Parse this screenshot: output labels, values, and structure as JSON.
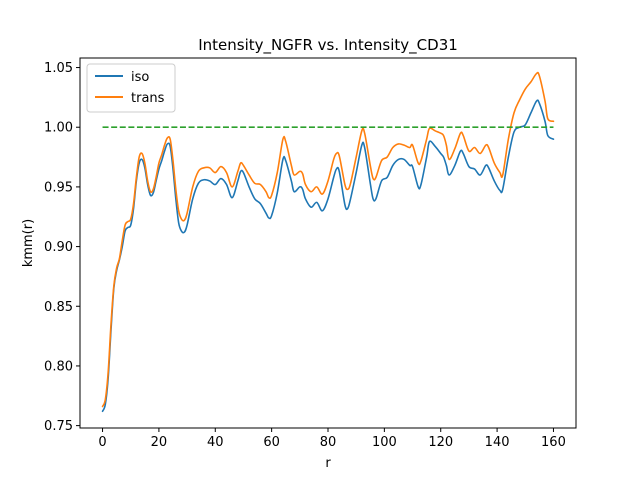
{
  "chart_data": {
    "type": "line",
    "title": "Intensity_NGFR vs. Intensity_CD31",
    "xlabel": "r",
    "ylabel": "kmm(r)",
    "xlim": [
      -8,
      168
    ],
    "ylim": [
      0.748,
      1.058
    ],
    "xticks": [
      0,
      20,
      40,
      60,
      80,
      100,
      120,
      140,
      160
    ],
    "xtick_labels": [
      "0",
      "20",
      "40",
      "60",
      "80",
      "100",
      "120",
      "140",
      "160"
    ],
    "yticks": [
      0.75,
      0.8,
      0.85,
      0.9,
      0.95,
      1.0,
      1.05
    ],
    "ytick_labels": [
      "0.75",
      "0.80",
      "0.85",
      "0.90",
      "0.95",
      "1.00",
      "1.05"
    ],
    "grid": false,
    "legend": {
      "position": "top-left",
      "entries": [
        "iso",
        "trans"
      ]
    },
    "series": [
      {
        "name": "iso",
        "color": "#1f77b4",
        "style": "solid",
        "points": [
          [
            0,
            0.762
          ],
          [
            1,
            0.768
          ],
          [
            2,
            0.79
          ],
          [
            3,
            0.83
          ],
          [
            4,
            0.865
          ],
          [
            5,
            0.88
          ],
          [
            6,
            0.889
          ],
          [
            7,
            0.9
          ],
          [
            8,
            0.913
          ],
          [
            9,
            0.916
          ],
          [
            10,
            0.918
          ],
          [
            11,
            0.932
          ],
          [
            12,
            0.955
          ],
          [
            13,
            0.97
          ],
          [
            14,
            0.973
          ],
          [
            15,
            0.966
          ],
          [
            16,
            0.952
          ],
          [
            17,
            0.943
          ],
          [
            18,
            0.945
          ],
          [
            19,
            0.955
          ],
          [
            20,
            0.965
          ],
          [
            21,
            0.972
          ],
          [
            22,
            0.98
          ],
          [
            23,
            0.986
          ],
          [
            24,
            0.984
          ],
          [
            25,
            0.965
          ],
          [
            26,
            0.94
          ],
          [
            27,
            0.92
          ],
          [
            28,
            0.913
          ],
          [
            29,
            0.912
          ],
          [
            30,
            0.918
          ],
          [
            32,
            0.94
          ],
          [
            34,
            0.953
          ],
          [
            36,
            0.956
          ],
          [
            38,
            0.955
          ],
          [
            40,
            0.952
          ],
          [
            42,
            0.957
          ],
          [
            44,
            0.952
          ],
          [
            46,
            0.941
          ],
          [
            48,
            0.955
          ],
          [
            49,
            0.963
          ],
          [
            50,
            0.962
          ],
          [
            52,
            0.95
          ],
          [
            54,
            0.94
          ],
          [
            56,
            0.936
          ],
          [
            58,
            0.928
          ],
          [
            59,
            0.924
          ],
          [
            60,
            0.926
          ],
          [
            62,
            0.945
          ],
          [
            64,
            0.973
          ],
          [
            65,
            0.972
          ],
          [
            67,
            0.955
          ],
          [
            68,
            0.946
          ],
          [
            70,
            0.95
          ],
          [
            71,
            0.948
          ],
          [
            72,
            0.94
          ],
          [
            74,
            0.933
          ],
          [
            76,
            0.937
          ],
          [
            78,
            0.93
          ],
          [
            80,
            0.94
          ],
          [
            82,
            0.958
          ],
          [
            83,
            0.965
          ],
          [
            84,
            0.963
          ],
          [
            86,
            0.935
          ],
          [
            87,
            0.932
          ],
          [
            88,
            0.94
          ],
          [
            90,
            0.962
          ],
          [
            92,
            0.985
          ],
          [
            93,
            0.983
          ],
          [
            95,
            0.953
          ],
          [
            96,
            0.94
          ],
          [
            97,
            0.94
          ],
          [
            99,
            0.955
          ],
          [
            101,
            0.958
          ],
          [
            103,
            0.968
          ],
          [
            105,
            0.973
          ],
          [
            107,
            0.973
          ],
          [
            109,
            0.968
          ],
          [
            110,
            0.967
          ],
          [
            112,
            0.95
          ],
          [
            113,
            0.952
          ],
          [
            115,
            0.975
          ],
          [
            116,
            0.988
          ],
          [
            118,
            0.984
          ],
          [
            120,
            0.978
          ],
          [
            121,
            0.975
          ],
          [
            122,
            0.968
          ],
          [
            123,
            0.96
          ],
          [
            125,
            0.968
          ],
          [
            127,
            0.98
          ],
          [
            128,
            0.978
          ],
          [
            130,
            0.967
          ],
          [
            132,
            0.965
          ],
          [
            134,
            0.96
          ],
          [
            136,
            0.968
          ],
          [
            137,
            0.966
          ],
          [
            139,
            0.955
          ],
          [
            141,
            0.947
          ],
          [
            142,
            0.948
          ],
          [
            144,
            0.975
          ],
          [
            146,
            0.996
          ],
          [
            148,
            1.0
          ],
          [
            150,
            1.002
          ],
          [
            152,
            1.012
          ],
          [
            154,
            1.022
          ],
          [
            155,
            1.02
          ],
          [
            157,
            1.005
          ],
          [
            158,
            0.993
          ],
          [
            160,
            0.99
          ]
        ]
      },
      {
        "name": "trans",
        "color": "#ff7f0e",
        "style": "solid",
        "points": [
          [
            0,
            0.766
          ],
          [
            1,
            0.772
          ],
          [
            2,
            0.795
          ],
          [
            3,
            0.835
          ],
          [
            4,
            0.867
          ],
          [
            5,
            0.882
          ],
          [
            6,
            0.89
          ],
          [
            7,
            0.905
          ],
          [
            8,
            0.918
          ],
          [
            9,
            0.921
          ],
          [
            10,
            0.923
          ],
          [
            11,
            0.936
          ],
          [
            12,
            0.958
          ],
          [
            13,
            0.975
          ],
          [
            14,
            0.978
          ],
          [
            15,
            0.97
          ],
          [
            16,
            0.955
          ],
          [
            17,
            0.946
          ],
          [
            18,
            0.948
          ],
          [
            19,
            0.958
          ],
          [
            20,
            0.97
          ],
          [
            21,
            0.977
          ],
          [
            22,
            0.985
          ],
          [
            23,
            0.991
          ],
          [
            24,
            0.99
          ],
          [
            25,
            0.972
          ],
          [
            26,
            0.948
          ],
          [
            27,
            0.93
          ],
          [
            28,
            0.923
          ],
          [
            29,
            0.922
          ],
          [
            30,
            0.928
          ],
          [
            32,
            0.95
          ],
          [
            34,
            0.963
          ],
          [
            36,
            0.966
          ],
          [
            38,
            0.966
          ],
          [
            40,
            0.962
          ],
          [
            42,
            0.967
          ],
          [
            44,
            0.962
          ],
          [
            46,
            0.95
          ],
          [
            48,
            0.963
          ],
          [
            49,
            0.97
          ],
          [
            50,
            0.968
          ],
          [
            52,
            0.96
          ],
          [
            54,
            0.953
          ],
          [
            56,
            0.952
          ],
          [
            58,
            0.946
          ],
          [
            59,
            0.941
          ],
          [
            60,
            0.943
          ],
          [
            62,
            0.962
          ],
          [
            64,
            0.99
          ],
          [
            65,
            0.988
          ],
          [
            67,
            0.968
          ],
          [
            68,
            0.96
          ],
          [
            70,
            0.963
          ],
          [
            71,
            0.961
          ],
          [
            72,
            0.952
          ],
          [
            74,
            0.946
          ],
          [
            76,
            0.95
          ],
          [
            78,
            0.944
          ],
          [
            80,
            0.955
          ],
          [
            82,
            0.973
          ],
          [
            83,
            0.978
          ],
          [
            84,
            0.976
          ],
          [
            86,
            0.952
          ],
          [
            87,
            0.948
          ],
          [
            88,
            0.953
          ],
          [
            90,
            0.975
          ],
          [
            92,
            0.997
          ],
          [
            93,
            0.995
          ],
          [
            95,
            0.968
          ],
          [
            96,
            0.957
          ],
          [
            97,
            0.958
          ],
          [
            99,
            0.972
          ],
          [
            101,
            0.975
          ],
          [
            103,
            0.983
          ],
          [
            105,
            0.986
          ],
          [
            107,
            0.985
          ],
          [
            109,
            0.983
          ],
          [
            110,
            0.985
          ],
          [
            112,
            0.97
          ],
          [
            113,
            0.972
          ],
          [
            115,
            0.99
          ],
          [
            116,
            0.999
          ],
          [
            118,
            0.997
          ],
          [
            120,
            0.995
          ],
          [
            121,
            0.993
          ],
          [
            122,
            0.985
          ],
          [
            123,
            0.973
          ],
          [
            125,
            0.982
          ],
          [
            127,
            0.995
          ],
          [
            128,
            0.993
          ],
          [
            130,
            0.98
          ],
          [
            132,
            0.983
          ],
          [
            134,
            0.978
          ],
          [
            136,
            0.985
          ],
          [
            137,
            0.983
          ],
          [
            139,
            0.97
          ],
          [
            141,
            0.962
          ],
          [
            142,
            0.96
          ],
          [
            144,
            0.99
          ],
          [
            146,
            1.012
          ],
          [
            148,
            1.023
          ],
          [
            150,
            1.032
          ],
          [
            152,
            1.038
          ],
          [
            154,
            1.045
          ],
          [
            155,
            1.043
          ],
          [
            157,
            1.022
          ],
          [
            158,
            1.007
          ],
          [
            160,
            1.005
          ]
        ]
      },
      {
        "name": "",
        "color": "#2ca02c",
        "style": "dashed",
        "points": [
          [
            0,
            1.0
          ],
          [
            160,
            1.0
          ]
        ]
      }
    ]
  }
}
